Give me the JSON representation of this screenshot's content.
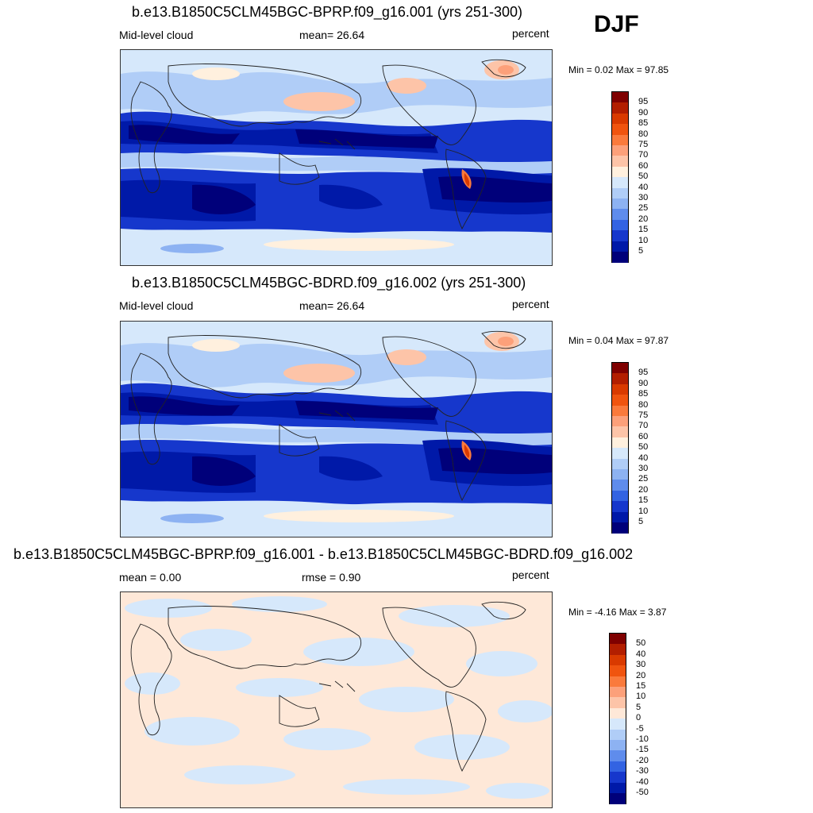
{
  "season": "DJF",
  "panels": [
    {
      "title": "b.e13.B1850C5CLM45BGC-BPRP.f09_g16.001 (yrs 251-300)",
      "left_label": "Mid-level cloud",
      "center_label": "mean=  26.64",
      "right_label": "percent",
      "minmax": "Min =   0.02 Max =  97.85",
      "kind": "field"
    },
    {
      "title": "b.e13.B1850C5CLM45BGC-BDRD.f09_g16.002 (yrs 251-300)",
      "left_label": "Mid-level cloud",
      "center_label": "mean=  26.64",
      "right_label": "percent",
      "minmax": "Min =   0.04 Max =  97.87",
      "kind": "field"
    },
    {
      "title": "b.e13.B1850C5CLM45BGC-BPRP.f09_g16.001 - b.e13.B1850C5CLM45BGC-BDRD.f09_g16.002",
      "left_label": "mean =   0.00",
      "center_label": "rmse =   0.90",
      "right_label": "percent",
      "minmax": "Min =  -4.16 Max =   3.87",
      "kind": "diff"
    }
  ],
  "colorbars": {
    "field": {
      "labels": [
        "95",
        "90",
        "85",
        "80",
        "75",
        "70",
        "60",
        "50",
        "40",
        "30",
        "25",
        "20",
        "15",
        "10",
        "5"
      ],
      "colors": [
        "#7f0000",
        "#b21e00",
        "#d93a00",
        "#f0540f",
        "#fa7a3c",
        "#fca07a",
        "#fdc4a8",
        "#fff0de",
        "#d6e8fb",
        "#b0cdf7",
        "#8db2f2",
        "#5f8cec",
        "#3363e2",
        "#1637cc",
        "#0019a8",
        "#00007a"
      ]
    },
    "diff": {
      "labels": [
        "50",
        "40",
        "30",
        "20",
        "15",
        "10",
        "5",
        "0",
        "-5",
        "-10",
        "-15",
        "-20",
        "-30",
        "-40",
        "-50"
      ],
      "colors": [
        "#7f0000",
        "#b21e00",
        "#d93a00",
        "#f0540f",
        "#fa7a3c",
        "#fca07a",
        "#fdc4a8",
        "#fee8d8",
        "#d6e8fb",
        "#b0cdf7",
        "#8db2f2",
        "#5f8cec",
        "#3363e2",
        "#1637cc",
        "#0019a8",
        "#00007a"
      ]
    }
  }
}
